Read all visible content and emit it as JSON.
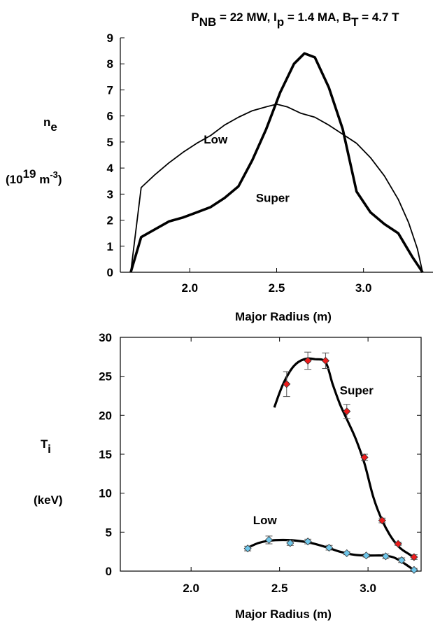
{
  "chart_data": [
    {
      "type": "line",
      "title": {
        "p": "P",
        "p_sub": "NB",
        "mid": " = 22 MW, I",
        "i_sub": "p",
        "mid2": " = 1.4 MA,  B",
        "b_sub": "T",
        "end": " = 4.7 T"
      },
      "xlabel": "Major Radius (m)",
      "ylabel": {
        "main": "n",
        "main_sub": "e",
        "unit_open": "(10",
        "unit_exp": "19",
        "unit_mid": " m",
        "unit_exp2": "-3",
        "unit_close": ")"
      },
      "xlim": [
        1.6,
        3.4
      ],
      "ylim": [
        0,
        9
      ],
      "xticks": [
        "2.0",
        "2.5",
        "3.0"
      ],
      "xtick_values": [
        2.0,
        2.5,
        3.0
      ],
      "yticks": [
        "0",
        "1",
        "2",
        "3",
        "4",
        "5",
        "6",
        "7",
        "8",
        "9"
      ],
      "series": [
        {
          "name": "Low",
          "x": [
            1.66,
            1.72,
            1.8,
            1.88,
            1.96,
            2.04,
            2.12,
            2.2,
            2.28,
            2.36,
            2.44,
            2.5,
            2.56,
            2.64,
            2.72,
            2.8,
            2.88,
            2.96,
            3.04,
            3.12,
            3.2,
            3.26,
            3.31,
            3.34
          ],
          "y": [
            0.0,
            3.25,
            3.75,
            4.2,
            4.6,
            4.95,
            5.25,
            5.65,
            5.95,
            6.2,
            6.35,
            6.45,
            6.35,
            6.1,
            5.95,
            5.65,
            5.3,
            4.95,
            4.4,
            3.7,
            2.8,
            1.9,
            0.9,
            0.0
          ],
          "width": "thin"
        },
        {
          "name": "Super",
          "x": [
            1.66,
            1.72,
            1.8,
            1.88,
            1.96,
            2.04,
            2.12,
            2.2,
            2.28,
            2.36,
            2.44,
            2.52,
            2.6,
            2.66,
            2.72,
            2.8,
            2.88,
            2.96,
            3.04,
            3.12,
            3.2,
            3.28,
            3.34
          ],
          "y": [
            0.0,
            1.35,
            1.65,
            1.95,
            2.1,
            2.3,
            2.5,
            2.85,
            3.3,
            4.3,
            5.5,
            6.9,
            8.0,
            8.4,
            8.25,
            7.1,
            5.5,
            3.1,
            2.3,
            1.85,
            1.5,
            0.6,
            0.0
          ],
          "width": "thick"
        }
      ],
      "annotations": [
        {
          "text": "Low",
          "x": 2.08,
          "y": 4.95
        },
        {
          "text": "Super",
          "x": 2.38,
          "y": 2.7
        }
      ]
    },
    {
      "type": "scatter",
      "xlabel": "Major Radius (m)",
      "ylabel": {
        "main": "T",
        "main_sub": "i",
        "unit": "(keV)"
      },
      "xlim": [
        1.6,
        3.3
      ],
      "ylim": [
        0,
        30
      ],
      "xticks": [
        "2.0",
        "2.5",
        "3.0"
      ],
      "xtick_values": [
        2.0,
        2.5,
        3.0
      ],
      "yticks": [
        "0",
        "5",
        "10",
        "15",
        "20",
        "25",
        "30"
      ],
      "ytick_values": [
        0,
        5,
        10,
        15,
        20,
        25,
        30
      ],
      "series": [
        {
          "name": "Super",
          "color": "#ee1c1c",
          "points": [
            {
              "x": 2.54,
              "y": 24.0,
              "err": 1.6
            },
            {
              "x": 2.66,
              "y": 27.0,
              "err": 1.1
            },
            {
              "x": 2.76,
              "y": 27.0,
              "err": 1.0
            },
            {
              "x": 2.88,
              "y": 20.5,
              "err": 0.9
            },
            {
              "x": 2.98,
              "y": 14.6,
              "err": 0.4
            },
            {
              "x": 3.08,
              "y": 6.5,
              "err": 0.3
            },
            {
              "x": 3.17,
              "y": 3.5,
              "err": 0.2
            },
            {
              "x": 3.26,
              "y": 1.8,
              "err": 0.3
            }
          ],
          "fit": {
            "x": [
              2.47,
              2.52,
              2.58,
              2.64,
              2.7,
              2.76,
              2.8,
              2.84,
              2.88,
              2.93,
              2.98,
              3.03,
              3.08,
              3.13,
              3.18,
              3.23,
              3.26
            ],
            "y": [
              21.0,
              24.0,
              26.3,
              27.2,
              27.2,
              26.8,
              24.0,
              21.5,
              19.5,
              17.0,
              13.8,
              9.5,
              6.5,
              4.4,
              3.0,
              2.2,
              1.8
            ]
          }
        },
        {
          "name": "Low",
          "color": "#6ec6ea",
          "points": [
            {
              "x": 2.32,
              "y": 2.9,
              "err": 0.3
            },
            {
              "x": 2.44,
              "y": 4.0,
              "err": 0.5
            },
            {
              "x": 2.56,
              "y": 3.6,
              "err": 0.3
            },
            {
              "x": 2.66,
              "y": 3.8,
              "err": 0.3
            },
            {
              "x": 2.78,
              "y": 3.0,
              "err": 0.3
            },
            {
              "x": 2.88,
              "y": 2.3,
              "err": 0.2
            },
            {
              "x": 2.99,
              "y": 2.0,
              "err": 0.2
            },
            {
              "x": 3.1,
              "y": 1.9,
              "err": 0.3
            },
            {
              "x": 3.19,
              "y": 1.4,
              "err": 0.3
            },
            {
              "x": 3.26,
              "y": 0.15,
              "err": 0.2
            }
          ],
          "fit": {
            "x": [
              2.32,
              2.38,
              2.44,
              2.52,
              2.6,
              2.68,
              2.76,
              2.84,
              2.92,
              3.0,
              3.08,
              3.14,
              3.19,
              3.23,
              3.26
            ],
            "y": [
              3.0,
              3.6,
              3.9,
              4.0,
              3.9,
              3.6,
              3.1,
              2.5,
              2.1,
              2.0,
              2.0,
              1.8,
              1.2,
              0.6,
              0.1
            ]
          }
        }
      ],
      "annotations": [
        {
          "text": "Super",
          "x": 2.84,
          "y": 22.7
        },
        {
          "text": "Low",
          "x": 2.35,
          "y": 6.0
        }
      ]
    }
  ]
}
